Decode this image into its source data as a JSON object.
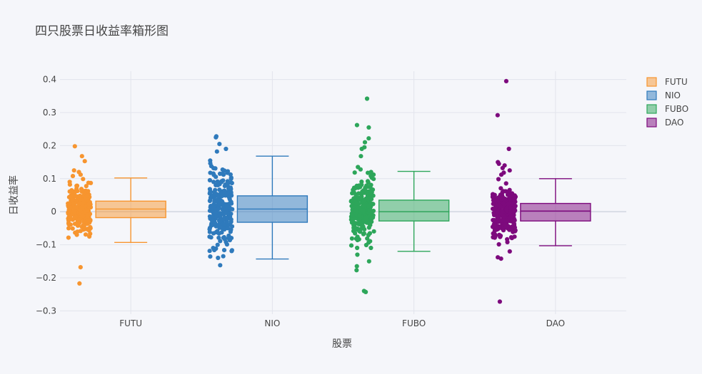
{
  "chart_data": {
    "type": "box",
    "title": "四只股票日收益率箱形图",
    "xlabel": "股票",
    "ylabel": "日收益率",
    "ylim": [
      -0.31,
      0.425
    ],
    "yticks": [
      -0.3,
      -0.2,
      -0.1,
      0,
      0.1,
      0.2,
      0.3,
      0.4
    ],
    "ytick_labels": [
      "−0.3",
      "−0.2",
      "−0.1",
      "0",
      "0.1",
      "0.2",
      "0.3",
      "0.4"
    ],
    "categories": [
      "FUTU",
      "NIO",
      "FUBO",
      "DAO"
    ],
    "grid": true,
    "legend_position": "top-right",
    "boxpoints": "all",
    "series": [
      {
        "name": "FUTU",
        "color": "#f7952f",
        "box": {
          "min": -0.093,
          "q1": -0.018,
          "median": 0.008,
          "q3": 0.032,
          "max": 0.102
        },
        "outliers": [
          0.198,
          0.168,
          0.153,
          0.125,
          0.12,
          0.112,
          0.108,
          -0.168,
          -0.217
        ],
        "n_points": 250
      },
      {
        "name": "NIO",
        "color": "#2f7abc",
        "box": {
          "min": -0.143,
          "q1": -0.032,
          "median": 0.008,
          "q3": 0.048,
          "max": 0.168
        },
        "outliers": [
          0.228,
          0.225,
          0.205,
          0.19,
          0.182,
          -0.162
        ],
        "n_points": 250
      },
      {
        "name": "FUBO",
        "color": "#2da65a",
        "box": {
          "min": -0.12,
          "q1": -0.028,
          "median": 0.0,
          "q3": 0.035,
          "max": 0.122
        },
        "outliers": [
          0.342,
          0.262,
          0.255,
          0.222,
          0.21,
          0.195,
          0.19,
          0.168,
          0.135,
          0.128,
          -0.13,
          -0.15,
          -0.165,
          -0.177,
          -0.24,
          -0.243
        ],
        "n_points": 250
      },
      {
        "name": "DAO",
        "color": "#7d0a7d",
        "box": {
          "min": -0.103,
          "q1": -0.028,
          "median": 0.002,
          "q3": 0.025,
          "max": 0.1
        },
        "outliers": [
          0.395,
          0.292,
          0.19,
          0.15,
          0.145,
          0.14,
          0.132,
          0.125,
          0.118,
          0.112,
          -0.12,
          -0.138,
          -0.142,
          -0.272
        ],
        "n_points": 250
      }
    ]
  }
}
